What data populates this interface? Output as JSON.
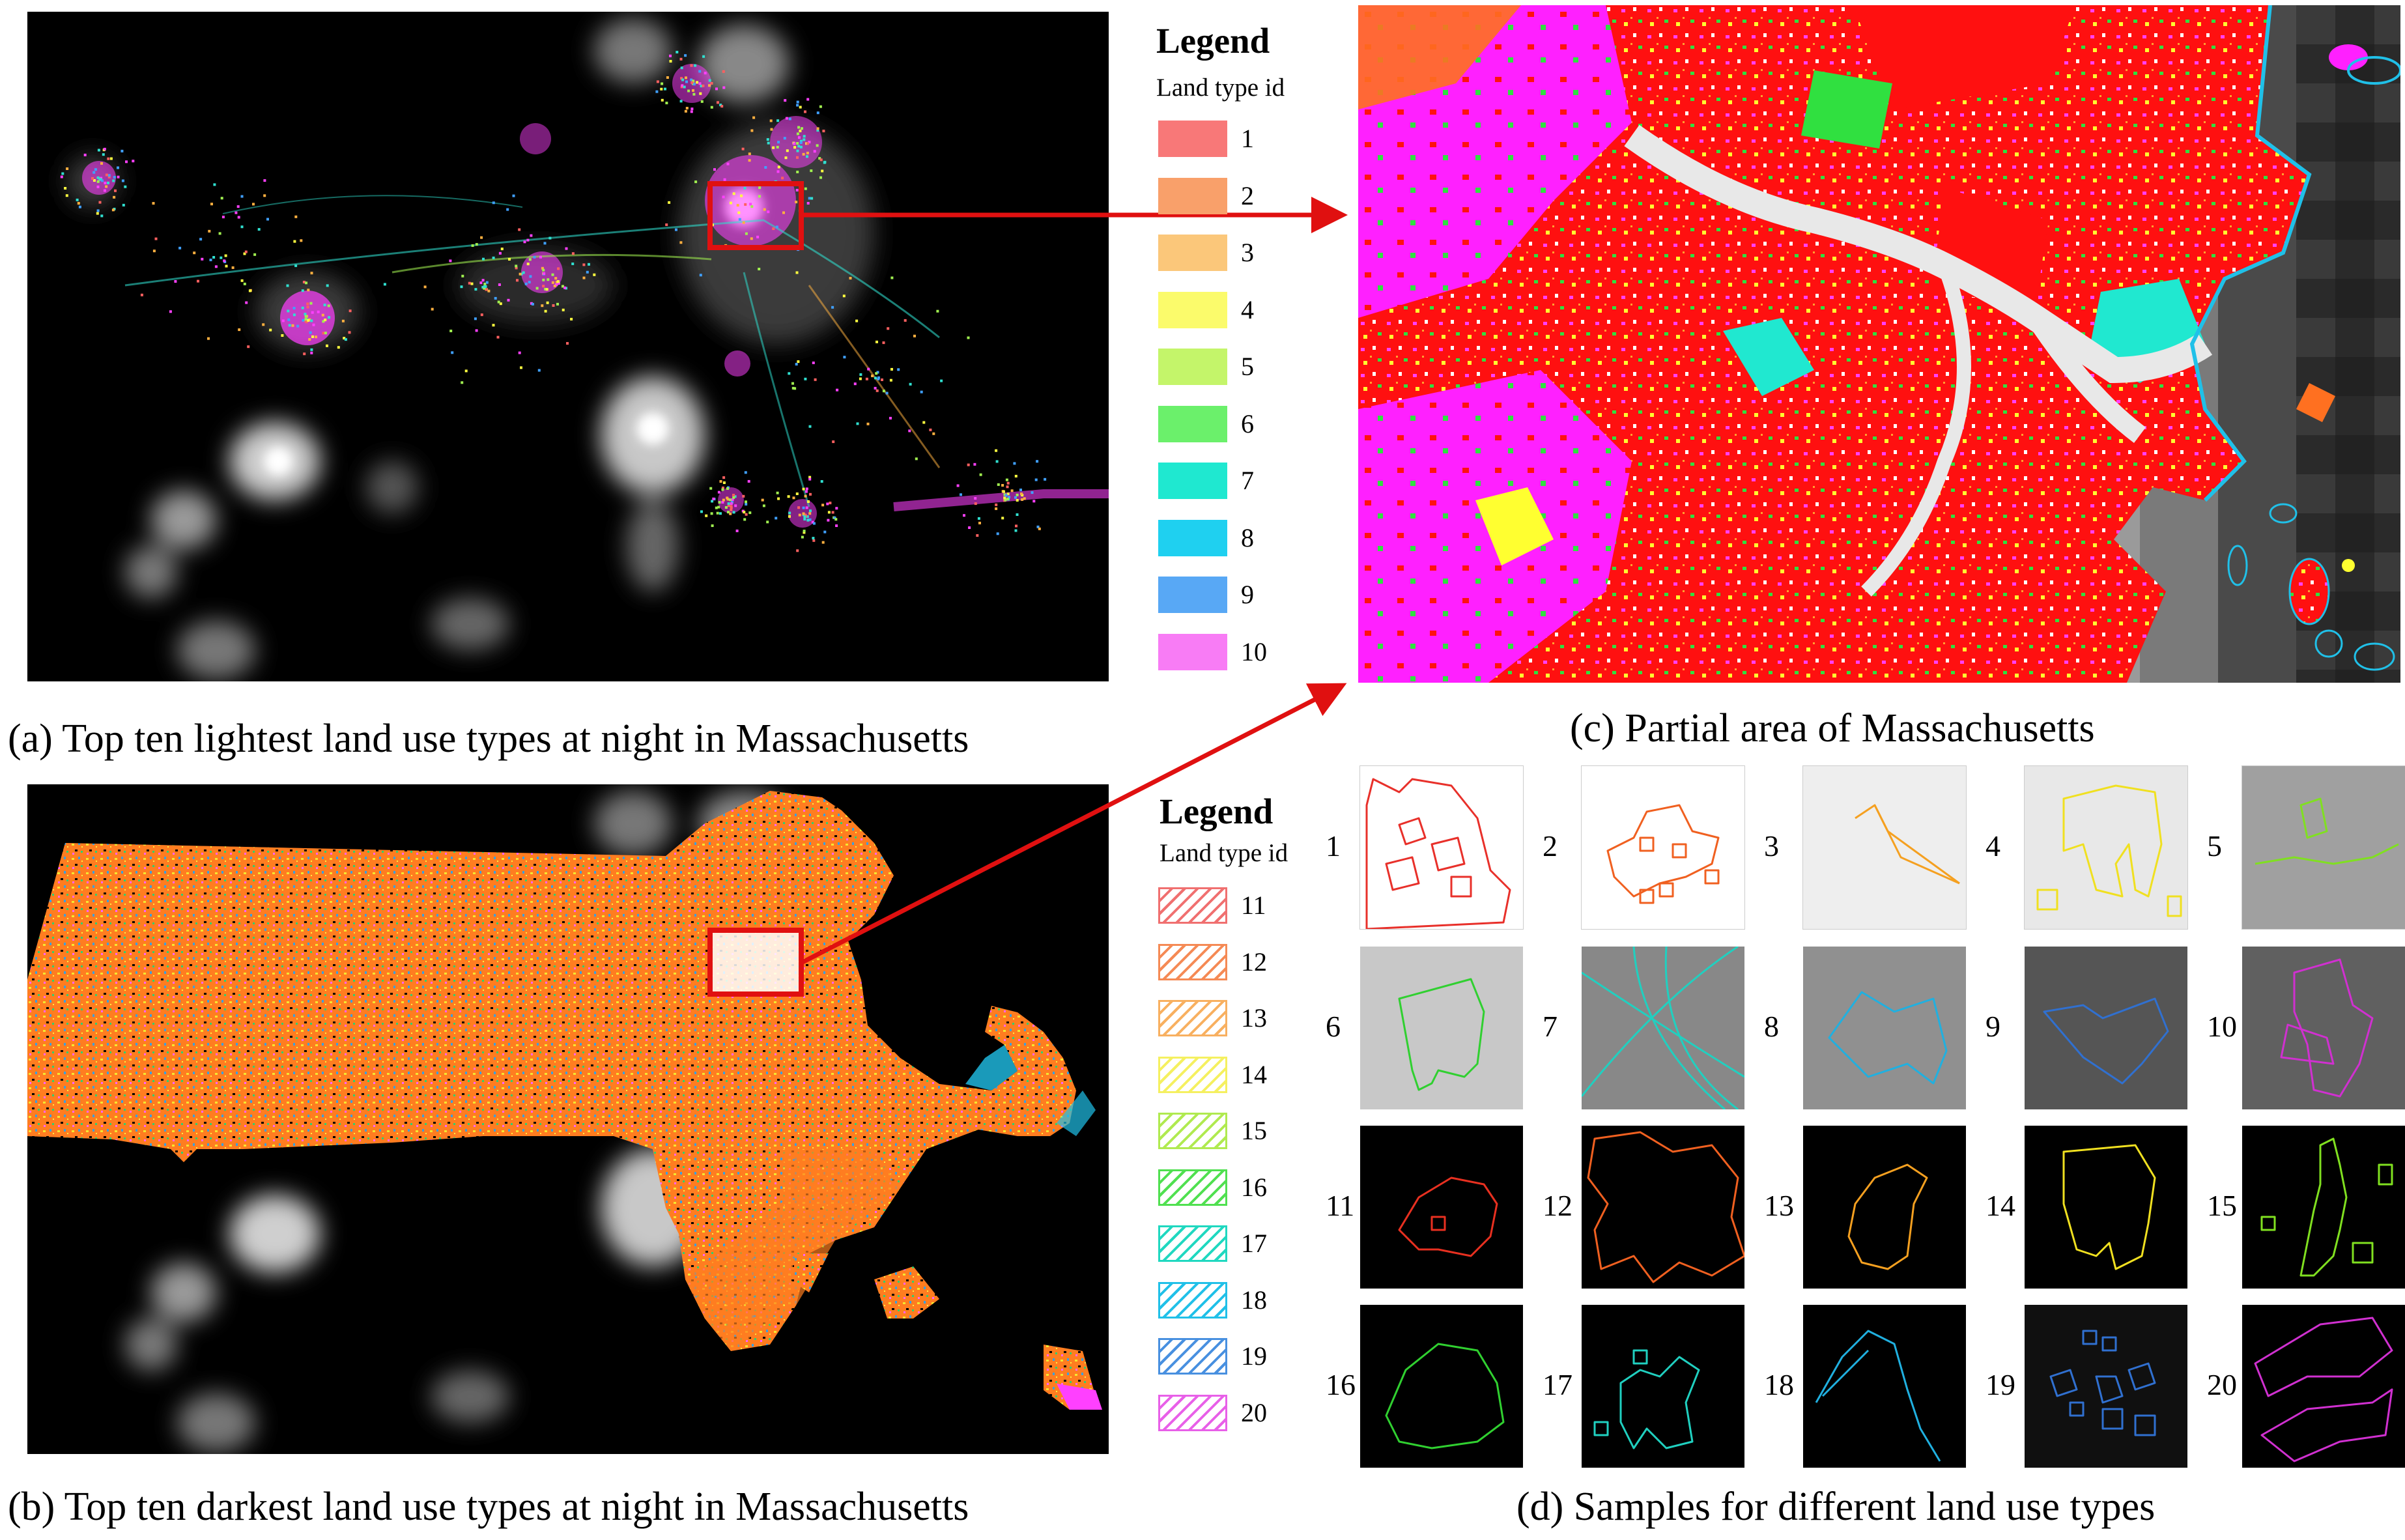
{
  "captions": {
    "a": "(a) Top ten lightest land use types at night in Massachusetts",
    "b": "(b) Top ten darkest land use types at night in Massachusetts",
    "c": "(c) Partial area of Massachusetts",
    "d": "(d) Samples for different land use types"
  },
  "legend_top": {
    "title": "Legend",
    "subtitle": "Land type id",
    "items": [
      {
        "id": "1",
        "color": "#f87878"
      },
      {
        "id": "2",
        "color": "#f9a06a"
      },
      {
        "id": "3",
        "color": "#fbc77a"
      },
      {
        "id": "4",
        "color": "#fbfb6b"
      },
      {
        "id": "5",
        "color": "#c4f56a"
      },
      {
        "id": "6",
        "color": "#6bf06b"
      },
      {
        "id": "7",
        "color": "#1fe8d0"
      },
      {
        "id": "8",
        "color": "#1fd0f0"
      },
      {
        "id": "9",
        "color": "#58a8f5"
      },
      {
        "id": "10",
        "color": "#f87cf5"
      }
    ]
  },
  "legend_bottom": {
    "title": "Legend",
    "subtitle": "Land type id",
    "items": [
      {
        "id": "11",
        "color": "#f07070"
      },
      {
        "id": "12",
        "color": "#f58a55"
      },
      {
        "id": "13",
        "color": "#f8b060"
      },
      {
        "id": "14",
        "color": "#f5f060"
      },
      {
        "id": "15",
        "color": "#b0ea50"
      },
      {
        "id": "16",
        "color": "#50e050"
      },
      {
        "id": "17",
        "color": "#20d8c0"
      },
      {
        "id": "18",
        "color": "#20c0e8"
      },
      {
        "id": "19",
        "color": "#4890e0"
      },
      {
        "id": "20",
        "color": "#e860e8"
      }
    ]
  },
  "samples": [
    {
      "id": "1",
      "color": "#e8302a",
      "bg": "#ffffff"
    },
    {
      "id": "2",
      "color": "#f06020",
      "bg": "#ffffff"
    },
    {
      "id": "3",
      "color": "#f5a020",
      "bg": "#eeeeee"
    },
    {
      "id": "4",
      "color": "#f0e020",
      "bg": "#e8e8e8"
    },
    {
      "id": "5",
      "color": "#80e020",
      "bg": "#a0a0a0"
    },
    {
      "id": "6",
      "color": "#30d030",
      "bg": "#c8c8c8"
    },
    {
      "id": "7",
      "color": "#20d0c0",
      "bg": "#888888"
    },
    {
      "id": "8",
      "color": "#20b0e0",
      "bg": "#909090"
    },
    {
      "id": "9",
      "color": "#3070d0",
      "bg": "#555555"
    },
    {
      "id": "10",
      "color": "#d030d0",
      "bg": "#606060"
    },
    {
      "id": "11",
      "color": "#e83020",
      "bg": "#000000"
    },
    {
      "id": "12",
      "color": "#f06020",
      "bg": "#000000"
    },
    {
      "id": "13",
      "color": "#f5a020",
      "bg": "#000000"
    },
    {
      "id": "14",
      "color": "#f0e020",
      "bg": "#000000"
    },
    {
      "id": "15",
      "color": "#80e020",
      "bg": "#000000"
    },
    {
      "id": "16",
      "color": "#30d030",
      "bg": "#000000"
    },
    {
      "id": "17",
      "color": "#20d0c0",
      "bg": "#000000"
    },
    {
      "id": "18",
      "color": "#20b0e0",
      "bg": "#000000"
    },
    {
      "id": "19",
      "color": "#3070d0",
      "bg": "#101010"
    },
    {
      "id": "20",
      "color": "#d030d0",
      "bg": "#000000"
    }
  ],
  "colors": {
    "highlight_box": "#e01010",
    "arrow": "#e01010",
    "night_glow": "#d8d8d8",
    "state_fill": "#ff7d20"
  }
}
